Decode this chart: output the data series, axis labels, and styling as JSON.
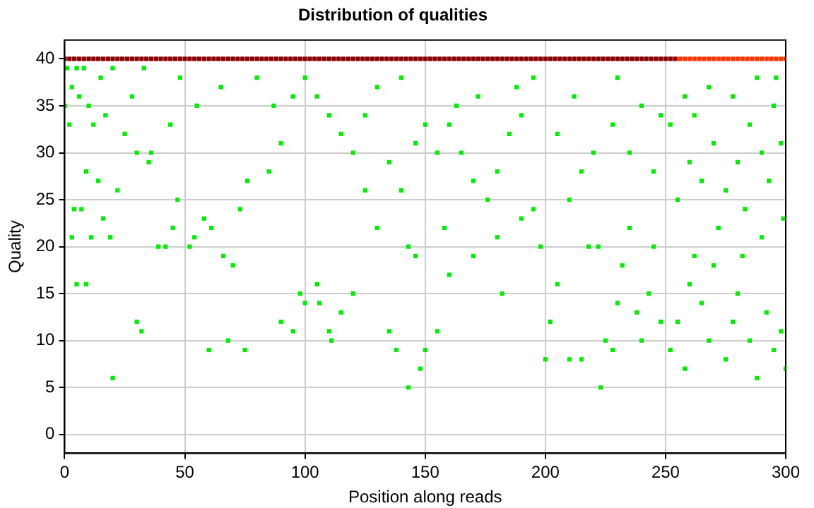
{
  "chart_data": {
    "type": "scatter",
    "title": "Distribution of qualities",
    "xlabel": "Position along reads",
    "ylabel": "Quality",
    "xlim": [
      0,
      300
    ],
    "xticks": [
      0,
      50,
      100,
      150,
      200,
      250,
      300
    ],
    "ylim": [
      -2,
      42
    ],
    "yticks": [
      0,
      5,
      10,
      15,
      20,
      25,
      30,
      35,
      40
    ],
    "grid": true,
    "legend": false,
    "marker": "square",
    "series": [
      {
        "color": "#8b0000",
        "x": [
          0,
          2,
          4,
          6,
          8,
          10,
          12,
          14,
          16,
          18,
          20,
          22,
          24,
          26,
          28,
          30,
          32,
          34,
          36,
          38,
          40,
          42,
          44,
          46,
          48,
          50,
          52,
          54,
          56,
          58,
          60,
          62,
          64,
          66,
          68,
          70,
          72,
          74,
          76,
          78,
          80,
          82,
          84,
          86,
          88,
          90,
          92,
          94,
          96,
          98,
          100,
          102,
          104,
          106,
          108,
          110,
          112,
          114,
          116,
          118,
          120,
          122,
          124,
          126,
          128,
          130,
          132,
          134,
          136,
          138,
          140,
          142,
          144,
          146,
          148,
          150,
          152,
          154,
          156,
          158,
          160,
          162,
          164,
          166,
          168,
          170,
          172,
          174,
          176,
          178,
          180,
          182,
          184,
          186,
          188,
          190,
          192,
          194,
          196,
          198,
          200,
          202,
          204,
          206,
          208,
          210,
          212,
          214,
          216,
          218,
          220,
          222,
          224,
          226,
          228,
          230,
          232,
          234,
          236,
          238,
          240,
          242,
          244,
          246,
          248,
          250,
          252,
          254
        ],
        "values": [
          40,
          40,
          40,
          40,
          40,
          40,
          40,
          40,
          40,
          40,
          40,
          40,
          40,
          40,
          40,
          40,
          40,
          40,
          40,
          40,
          40,
          40,
          40,
          40,
          40,
          40,
          40,
          40,
          40,
          40,
          40,
          40,
          40,
          40,
          40,
          40,
          40,
          40,
          40,
          40,
          40,
          40,
          40,
          40,
          40,
          40,
          40,
          40,
          40,
          40,
          40,
          40,
          40,
          40,
          40,
          40,
          40,
          40,
          40,
          40,
          40,
          40,
          40,
          40,
          40,
          40,
          40,
          40,
          40,
          40,
          40,
          40,
          40,
          40,
          40,
          40,
          40,
          40,
          40,
          40,
          40,
          40,
          40,
          40,
          40,
          40,
          40,
          40,
          40,
          40,
          40,
          40,
          40,
          40,
          40,
          40,
          40,
          40,
          40,
          40,
          40,
          40,
          40,
          40,
          40,
          40,
          40,
          40,
          40,
          40,
          40,
          40,
          40,
          40,
          40,
          40,
          40,
          40,
          40,
          40,
          40,
          40,
          40,
          40,
          40,
          40,
          40,
          40
        ]
      },
      {
        "color": "#ff3300",
        "x": [
          256,
          258,
          260,
          262,
          264,
          266,
          268,
          270,
          272,
          274,
          276,
          278,
          280,
          282,
          284,
          286,
          288,
          290,
          292,
          294,
          296,
          298,
          300
        ],
        "values": [
          40,
          40,
          40,
          40,
          40,
          40,
          40,
          40,
          40,
          40,
          40,
          40,
          40,
          40,
          40,
          40,
          40,
          40,
          40,
          40,
          40,
          40,
          40
        ]
      },
      {
        "color": "#00ee00",
        "x": [
          1,
          5,
          8,
          15,
          20,
          3,
          6,
          10,
          0,
          2,
          12,
          17,
          25,
          30,
          35,
          9,
          14,
          22,
          4,
          7,
          16,
          3,
          11,
          19,
          5,
          9,
          30,
          32,
          20,
          42,
          45,
          39,
          47,
          36,
          44,
          48,
          33,
          28,
          52,
          54,
          58,
          61,
          66,
          70,
          73,
          76,
          85,
          90,
          95,
          100,
          110,
          115,
          120,
          125,
          130,
          135,
          140,
          143,
          146,
          98,
          100,
          106,
          110,
          111,
          60,
          68,
          75,
          90,
          95,
          105,
          115,
          120,
          135,
          138,
          143,
          148,
          146,
          150,
          55,
          65,
          80,
          87,
          130,
          140,
          125,
          105,
          155,
          160,
          165,
          170,
          176,
          180,
          185,
          190,
          195,
          158,
          170,
          180,
          190,
          195,
          198,
          160,
          182,
          155,
          150,
          163,
          172,
          188,
          200,
          202,
          205,
          210,
          215,
          218,
          222,
          225,
          223,
          228,
          230,
          232,
          235,
          238,
          240,
          243,
          245,
          248,
          210,
          215,
          220,
          228,
          235,
          240,
          245,
          205,
          212,
          230,
          248,
          252,
          255,
          258,
          260,
          262,
          265,
          268,
          270,
          272,
          275,
          278,
          280,
          282,
          285,
          288,
          290,
          292,
          295,
          298,
          300,
          255,
          260,
          265,
          270,
          275,
          280,
          285,
          290,
          295,
          298,
          258,
          268,
          278,
          288,
          296,
          252,
          262,
          283,
          293,
          299
        ],
        "values": [
          39,
          39,
          39,
          38,
          39,
          37,
          36,
          35,
          35,
          33,
          33,
          34,
          32,
          30,
          29,
          28,
          27,
          26,
          24,
          24,
          23,
          21,
          21,
          21,
          16,
          16,
          12,
          11,
          6,
          20,
          22,
          20,
          25,
          30,
          33,
          38,
          39,
          36,
          20,
          21,
          23,
          22,
          19,
          18,
          24,
          27,
          28,
          31,
          36,
          38,
          34,
          32,
          30,
          26,
          22,
          29,
          26,
          20,
          19,
          15,
          14,
          14,
          11,
          10,
          9,
          10,
          9,
          12,
          11,
          16,
          13,
          15,
          11,
          9,
          5,
          7,
          31,
          33,
          35,
          37,
          38,
          35,
          37,
          38,
          34,
          36,
          30,
          33,
          30,
          27,
          25,
          28,
          32,
          34,
          38,
          22,
          19,
          21,
          23,
          24,
          20,
          17,
          15,
          11,
          9,
          35,
          36,
          37,
          8,
          12,
          16,
          8,
          8,
          20,
          20,
          10,
          5,
          9,
          14,
          18,
          22,
          13,
          10,
          15,
          20,
          12,
          25,
          28,
          30,
          33,
          30,
          35,
          28,
          32,
          36,
          38,
          34,
          9,
          12,
          7,
          16,
          19,
          14,
          10,
          18,
          22,
          8,
          12,
          15,
          19,
          10,
          6,
          21,
          13,
          9,
          11,
          7,
          25,
          29,
          27,
          31,
          26,
          29,
          33,
          30,
          35,
          31,
          36,
          37,
          36,
          38,
          38,
          33,
          34,
          24,
          27,
          23
        ]
      }
    ]
  }
}
